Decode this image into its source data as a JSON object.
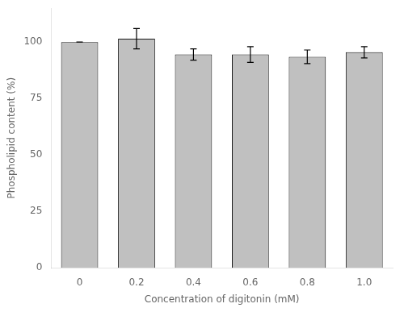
{
  "chart_data": {
    "type": "bar",
    "categories": [
      "0",
      "0.2",
      "0.4",
      "0.6",
      "0.8",
      "1.0"
    ],
    "values": [
      100.0,
      101.5,
      94.5,
      94.5,
      93.5,
      95.5
    ],
    "errors": [
      0.0,
      4.5,
      2.5,
      3.5,
      3.0,
      2.5
    ],
    "color": "#c0c0c0",
    "xlabel": "Concentration of digitonin (mM)",
    "ylabel": "Phospholipid content (%)",
    "ylim": [
      0,
      115
    ],
    "yticks": [
      0,
      25,
      50,
      75,
      100
    ],
    "grid": false
  }
}
